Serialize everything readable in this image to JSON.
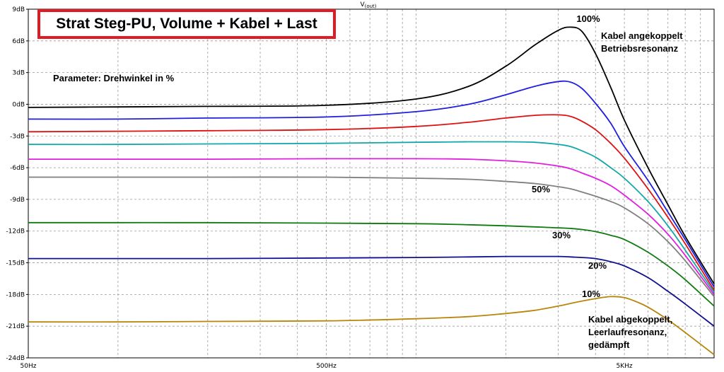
{
  "chart_data": {
    "type": "line",
    "title": "Strat Steg-PU, Volume + Kabel + Last",
    "ylabel": "V(out)",
    "xlabel": "",
    "x_scale": "log",
    "xlim": [
      50,
      10000
    ],
    "ylim": [
      -24,
      9
    ],
    "grid": true,
    "x_tick_labels": [
      "50Hz",
      "500Hz",
      "5KHz"
    ],
    "y_tick_labels": [
      "9dB",
      "6dB",
      "3dB",
      "0dB",
      "-3dB",
      "-6dB",
      "-9dB",
      "-12dB",
      "-15dB",
      "-18dB",
      "-21dB",
      "-24dB"
    ],
    "y_ticks": [
      9,
      6,
      3,
      0,
      -3,
      -6,
      -9,
      -12,
      -15,
      -18,
      -21,
      -24
    ],
    "x_ticks_labeled": [
      50,
      500,
      5000
    ],
    "x_minor_ticks": [
      100,
      200,
      300,
      400,
      600,
      700,
      800,
      900,
      1000,
      2000,
      3000,
      4000,
      6000,
      7000,
      8000,
      9000,
      10000
    ],
    "annotations": [
      "Parameter: Drehwinkel in %",
      "Kabel angekoppelt",
      "Betriebsresonanz",
      "Kabel abgekoppelt,",
      "Leerlaufresonanz,",
      "gedämpft"
    ],
    "series": [
      {
        "label": "100%",
        "color": "#000000",
        "x": [
          50,
          100,
          200,
          500,
          1000,
          1500,
          2000,
          2500,
          3000,
          3300,
          3600,
          4000,
          4500,
          5000,
          6000,
          7000,
          8000,
          10000
        ],
        "y": [
          -0.3,
          -0.25,
          -0.2,
          -0.1,
          0.5,
          1.7,
          3.6,
          5.6,
          7.0,
          7.3,
          6.9,
          4.8,
          1.6,
          -1.5,
          -6.0,
          -9.5,
          -12.5,
          -17.0
        ]
      },
      {
        "series_id": "s90",
        "color": "#1f1fdf",
        "x": [
          50,
          100,
          200,
          500,
          1000,
          1500,
          2000,
          2500,
          3000,
          3300,
          3600,
          4000,
          4500,
          5000,
          6000,
          7000,
          8000,
          10000
        ],
        "y": [
          -1.4,
          -1.4,
          -1.3,
          -1.2,
          -0.7,
          0.0,
          0.9,
          1.7,
          2.15,
          2.1,
          1.5,
          0.1,
          -1.8,
          -4.0,
          -7.2,
          -10.2,
          -12.8,
          -17.3
        ]
      },
      {
        "series_id": "s80",
        "color": "#e01010",
        "x": [
          50,
          100,
          200,
          500,
          1000,
          1500,
          2000,
          2500,
          3000,
          3300,
          3600,
          4000,
          4500,
          5000,
          6000,
          7000,
          8000,
          10000
        ],
        "y": [
          -2.6,
          -2.55,
          -2.5,
          -2.4,
          -2.1,
          -1.7,
          -1.3,
          -1.05,
          -1.0,
          -1.15,
          -1.6,
          -2.4,
          -3.7,
          -5.1,
          -8.0,
          -10.7,
          -13.2,
          -17.6
        ]
      },
      {
        "series_id": "s70",
        "color": "#14a7a7",
        "x": [
          50,
          100,
          200,
          500,
          1000,
          1500,
          2000,
          2500,
          3000,
          3300,
          3600,
          4000,
          4500,
          5000,
          6000,
          7000,
          8000,
          10000
        ],
        "y": [
          -3.8,
          -3.8,
          -3.75,
          -3.7,
          -3.6,
          -3.55,
          -3.55,
          -3.6,
          -3.8,
          -4.0,
          -4.4,
          -5.0,
          -6.0,
          -7.0,
          -9.2,
          -11.5,
          -13.8,
          -17.8
        ]
      },
      {
        "series_id": "s60",
        "color": "#e01ee0",
        "x": [
          50,
          100,
          200,
          500,
          1000,
          1500,
          2000,
          2500,
          3000,
          3300,
          3600,
          4000,
          4500,
          5000,
          6000,
          7000,
          8000,
          10000
        ],
        "y": [
          -5.2,
          -5.2,
          -5.2,
          -5.15,
          -5.15,
          -5.2,
          -5.35,
          -5.55,
          -5.85,
          -6.1,
          -6.5,
          -7.0,
          -7.7,
          -8.6,
          -10.4,
          -12.3,
          -14.3,
          -18.0
        ]
      },
      {
        "label": "50%",
        "color": "#808080",
        "x": [
          50,
          100,
          200,
          500,
          1000,
          1500,
          2000,
          2500,
          3000,
          3300,
          3600,
          4000,
          4500,
          5000,
          6000,
          7000,
          8000,
          10000
        ],
        "y": [
          -6.9,
          -6.9,
          -6.9,
          -6.9,
          -7.0,
          -7.1,
          -7.3,
          -7.5,
          -7.8,
          -8.0,
          -8.3,
          -8.7,
          -9.2,
          -9.8,
          -11.3,
          -13.0,
          -14.8,
          -18.2
        ]
      },
      {
        "label": "30%",
        "color": "#0f7a0f",
        "x": [
          50,
          100,
          200,
          500,
          1000,
          1500,
          2000,
          2500,
          3000,
          3300,
          3600,
          4000,
          4500,
          5000,
          6000,
          7000,
          8000,
          10000
        ],
        "y": [
          -11.2,
          -11.2,
          -11.2,
          -11.25,
          -11.3,
          -11.4,
          -11.5,
          -11.6,
          -11.7,
          -11.75,
          -11.85,
          -12.05,
          -12.4,
          -12.8,
          -14.0,
          -15.3,
          -16.6,
          -19.1
        ]
      },
      {
        "label": "20%",
        "color": "#101090",
        "x": [
          50,
          100,
          200,
          500,
          1000,
          1500,
          2000,
          2500,
          3000,
          3300,
          3600,
          4000,
          4500,
          5000,
          6000,
          7000,
          8000,
          10000
        ],
        "y": [
          -14.6,
          -14.6,
          -14.6,
          -14.55,
          -14.5,
          -14.45,
          -14.4,
          -14.4,
          -14.4,
          -14.45,
          -14.5,
          -14.6,
          -14.9,
          -15.3,
          -16.4,
          -17.7,
          -18.9,
          -21.0
        ]
      },
      {
        "label": "10%",
        "color": "#b8860b",
        "x": [
          50,
          100,
          200,
          500,
          1000,
          1500,
          2000,
          2500,
          3000,
          3500,
          4000,
          4500,
          5000,
          5500,
          6000,
          7000,
          8000,
          10000
        ],
        "y": [
          -20.6,
          -20.6,
          -20.55,
          -20.5,
          -20.3,
          -20.1,
          -19.8,
          -19.5,
          -19.1,
          -18.7,
          -18.4,
          -18.2,
          -18.3,
          -18.7,
          -19.2,
          -20.4,
          -21.6,
          -23.7
        ]
      }
    ]
  }
}
